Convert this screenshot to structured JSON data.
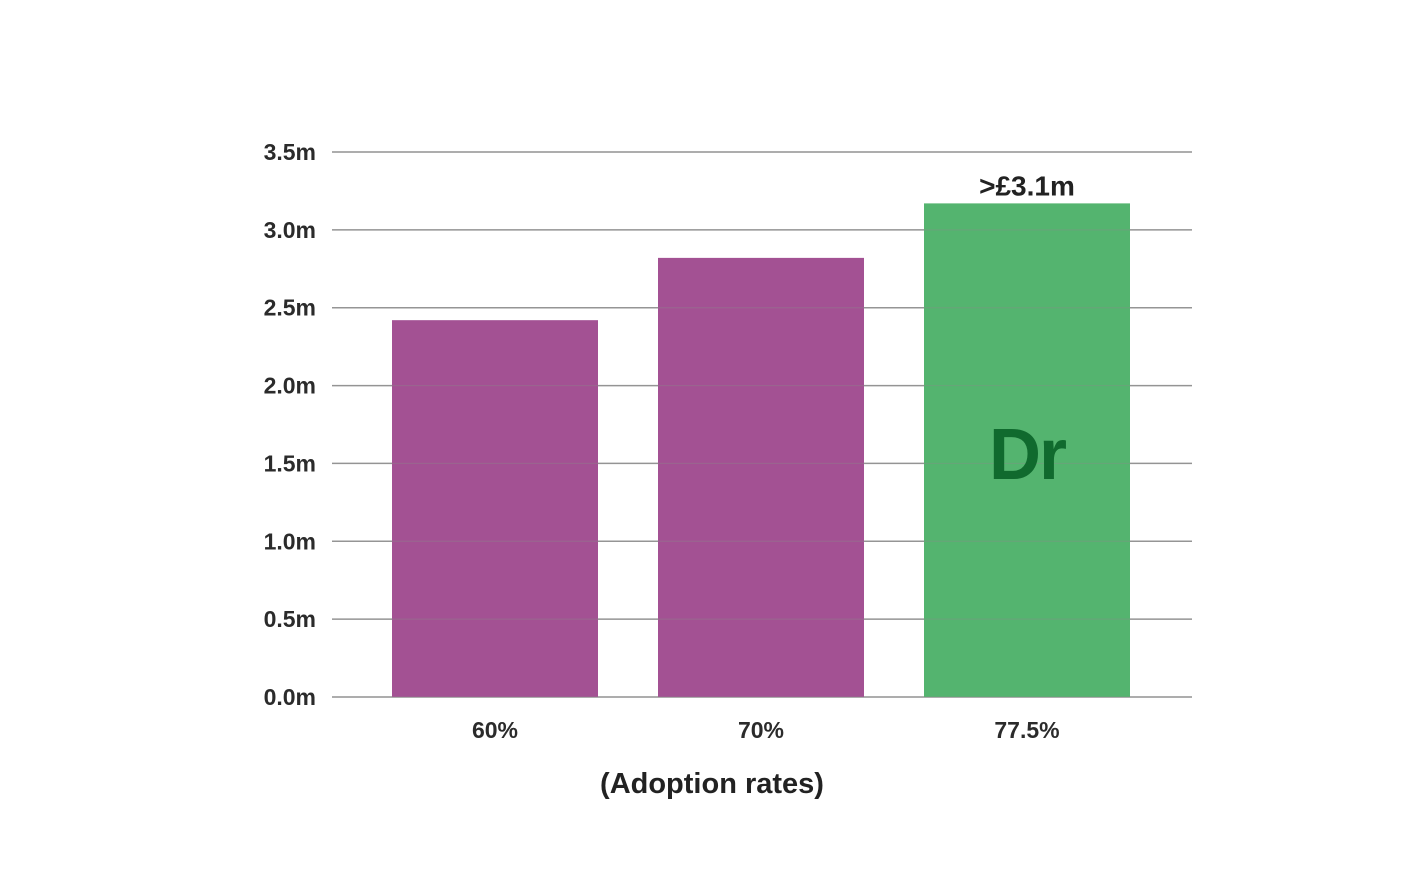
{
  "chart_data": {
    "type": "bar",
    "categories": [
      "60%",
      "70%",
      "77.5%"
    ],
    "values": [
      2.42,
      2.82,
      3.17
    ],
    "bar_colors": [
      "#a35193",
      "#a35193",
      "#54b46f"
    ],
    "value_annotations": [
      "",
      "",
      ">£3.1m"
    ],
    "bar_logo": {
      "index": 2,
      "text": "Dr",
      "color": "#106a2e"
    },
    "ylim": [
      0,
      3.5
    ],
    "yticks": [
      0,
      0.5,
      1.0,
      1.5,
      2.0,
      2.5,
      3.0,
      3.5
    ],
    "ytick_labels": [
      "0.0m",
      "0.5m",
      "1.0m",
      "1.5m",
      "2.0m",
      "2.5m",
      "3.0m",
      "3.5m"
    ],
    "xlabel": "(Adoption rates)",
    "ylabel": "",
    "title": "",
    "grid": true,
    "legend": "none"
  }
}
